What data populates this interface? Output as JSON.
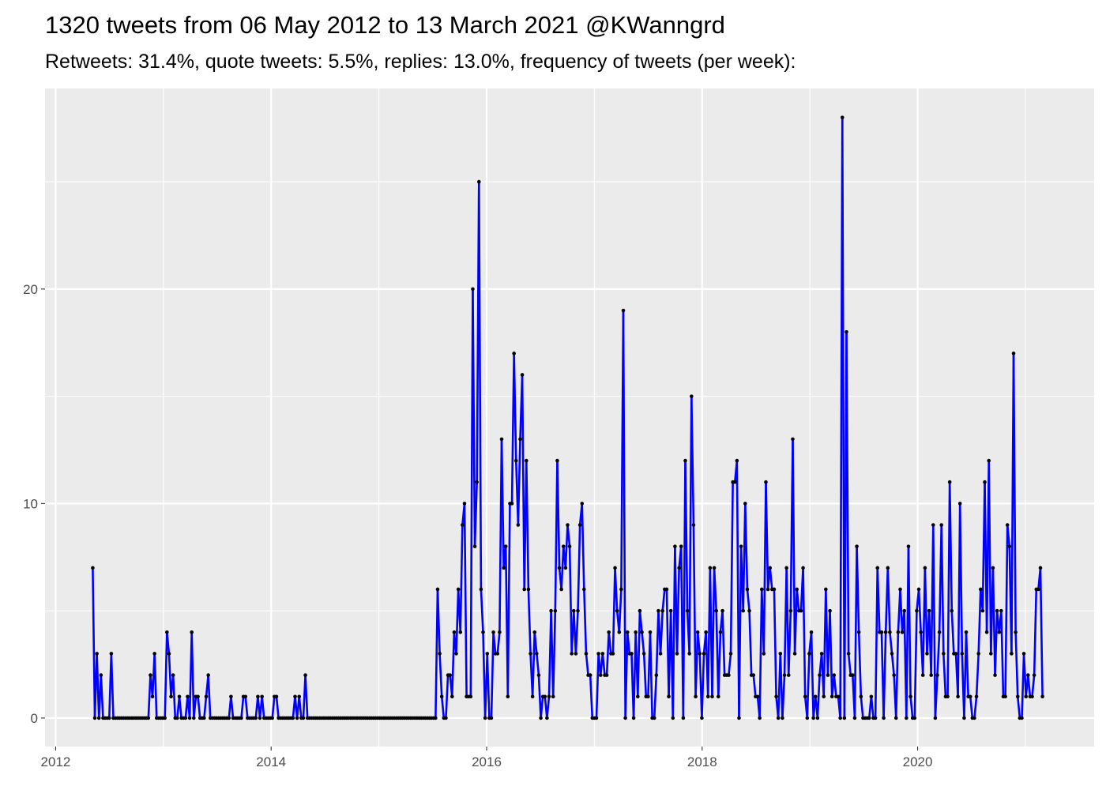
{
  "chart_data": {
    "type": "line",
    "title": "1320 tweets from 06 May 2012 to 13 March 2021 @KWanngrd",
    "subtitle": "Retweets: 31.4%, quote tweets: 5.5%, replies: 13.0%, frequency of tweets (per week):",
    "xlabel": "",
    "ylabel": "",
    "x_start": "2012-05-06",
    "x_interval": "week",
    "xlim": [
      "2011-11-26",
      "2021-08-22"
    ],
    "ylim": [
      -1.33,
      29.35
    ],
    "x_ticks": [
      "2012",
      "2014",
      "2016",
      "2018",
      "2020"
    ],
    "x_minor_ticks": [
      "2013",
      "2015",
      "2017",
      "2019",
      "2021"
    ],
    "y_ticks": [
      0,
      10,
      20
    ],
    "y_tick_labels": [
      "0",
      "10",
      "20"
    ],
    "y_minor_ticks": [
      5,
      15,
      25
    ],
    "grid": true,
    "legend": "none",
    "colors": {
      "line": "#0000FF",
      "points": "#000000",
      "panel": "#EBEBEB",
      "grid": "#FFFFFF"
    },
    "values": [
      7,
      0,
      3,
      0,
      2,
      0,
      0,
      0,
      0,
      3,
      0,
      0,
      0,
      0,
      0,
      0,
      0,
      0,
      0,
      0,
      0,
      0,
      0,
      0,
      0,
      0,
      0,
      0,
      2,
      1,
      3,
      0,
      0,
      0,
      0,
      0,
      4,
      3,
      1,
      2,
      0,
      0,
      1,
      0,
      0,
      0,
      1,
      0,
      4,
      0,
      1,
      1,
      0,
      0,
      0,
      1,
      2,
      0,
      0,
      0,
      0,
      0,
      0,
      0,
      0,
      0,
      0,
      1,
      0,
      0,
      0,
      0,
      0,
      1,
      1,
      0,
      0,
      0,
      0,
      0,
      1,
      0,
      1,
      0,
      0,
      0,
      0,
      0,
      1,
      1,
      0,
      0,
      0,
      0,
      0,
      0,
      0,
      0,
      1,
      0,
      1,
      0,
      0,
      2,
      0,
      0,
      0,
      0,
      0,
      0,
      0,
      0,
      0,
      0,
      0,
      0,
      0,
      0,
      0,
      0,
      0,
      0,
      0,
      0,
      0,
      0,
      0,
      0,
      0,
      0,
      0,
      0,
      0,
      0,
      0,
      0,
      0,
      0,
      0,
      0,
      0,
      0,
      0,
      0,
      0,
      0,
      0,
      0,
      0,
      0,
      0,
      0,
      0,
      0,
      0,
      0,
      0,
      0,
      0,
      0,
      0,
      0,
      0,
      0,
      0,
      0,
      0,
      6,
      3,
      1,
      0,
      0,
      2,
      2,
      1,
      4,
      3,
      6,
      4,
      9,
      10,
      1,
      1,
      1,
      20,
      8,
      11,
      25,
      6,
      4,
      0,
      3,
      0,
      0,
      4,
      3,
      3,
      4,
      13,
      7,
      8,
      1,
      10,
      10,
      17,
      12,
      9,
      13,
      16,
      6,
      12,
      6,
      3,
      1,
      4,
      3,
      2,
      0,
      1,
      1,
      0,
      1,
      5,
      1,
      5,
      12,
      7,
      6,
      8,
      7,
      9,
      8,
      3,
      5,
      3,
      5,
      9,
      10,
      6,
      3,
      2,
      2,
      0,
      0,
      0,
      3,
      2,
      3,
      2,
      2,
      4,
      3,
      3,
      7,
      5,
      4,
      6,
      19,
      0,
      4,
      3,
      3,
      0,
      4,
      1,
      5,
      4,
      3,
      1,
      1,
      4,
      0,
      0,
      2,
      5,
      3,
      5,
      6,
      6,
      1,
      5,
      0,
      8,
      3,
      7,
      8,
      0,
      12,
      5,
      3,
      15,
      9,
      1,
      4,
      3,
      0,
      3,
      4,
      1,
      7,
      1,
      7,
      5,
      1,
      4,
      5,
      2,
      2,
      2,
      3,
      11,
      11,
      12,
      0,
      8,
      5,
      10,
      6,
      5,
      2,
      2,
      1,
      1,
      0,
      6,
      3,
      11,
      6,
      7,
      6,
      6,
      1,
      0,
      3,
      0,
      2,
      7,
      2,
      5,
      13,
      3,
      6,
      5,
      5,
      7,
      1,
      0,
      3,
      4,
      0,
      1,
      0,
      2,
      3,
      1,
      6,
      2,
      5,
      1,
      2,
      1,
      1,
      0,
      28,
      0,
      18,
      3,
      2,
      2,
      0,
      8,
      4,
      1,
      0,
      0,
      0,
      0,
      1,
      0,
      0,
      7,
      4,
      4,
      0,
      4,
      7,
      4,
      3,
      2,
      0,
      4,
      6,
      4,
      5,
      0,
      8,
      1,
      0,
      0,
      5,
      6,
      4,
      2,
      7,
      3,
      5,
      2,
      9,
      0,
      2,
      4,
      9,
      3,
      1,
      1,
      11,
      5,
      3,
      3,
      1,
      10,
      3,
      0,
      4,
      1,
      1,
      0,
      0,
      1,
      3,
      6,
      5,
      11,
      4,
      12,
      3,
      7,
      2,
      5,
      4,
      5,
      1,
      1,
      9,
      8,
      3,
      17,
      4,
      1,
      0,
      0,
      3,
      1,
      2,
      1,
      1,
      2,
      6,
      6,
      7,
      1
    ]
  }
}
